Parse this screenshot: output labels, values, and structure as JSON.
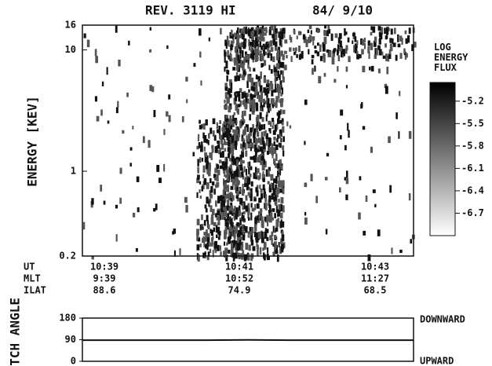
{
  "chart_data": [
    {
      "type": "heatmap",
      "title": "REV. 3119  HI",
      "date": "84/ 9/10",
      "y_label": "ENERGY  [KEV]",
      "log_y": true,
      "ylim": [
        0.2,
        16
      ],
      "yticks": [
        16,
        10,
        1,
        0.2
      ],
      "x_rows": [
        {
          "name": "UT",
          "labels": [
            "10:39",
            "10:41",
            "10:43"
          ]
        },
        {
          "name": "MLT",
          "labels": [
            "9:39",
            "10:52",
            "11:27"
          ]
        },
        {
          "name": "ILAT",
          "labels": [
            "88.6",
            "74.9",
            "68.5"
          ]
        }
      ],
      "colorbar": {
        "label": "LOG ENERGY FLUX",
        "lim": [
          -7.0,
          -4.95
        ],
        "ticks": [
          -5.2,
          -5.5,
          -5.8,
          -6.1,
          -6.4,
          -6.7
        ]
      }
    },
    {
      "type": "line",
      "y_label": "PITCH ANGLE",
      "ylim": [
        0,
        180
      ],
      "yticks": [
        180,
        90,
        0
      ],
      "top_label": "DOWNWARD",
      "bottom_label": "UPWARD",
      "values": [
        88,
        88,
        88,
        88,
        89,
        88,
        88,
        88,
        88
      ]
    }
  ]
}
